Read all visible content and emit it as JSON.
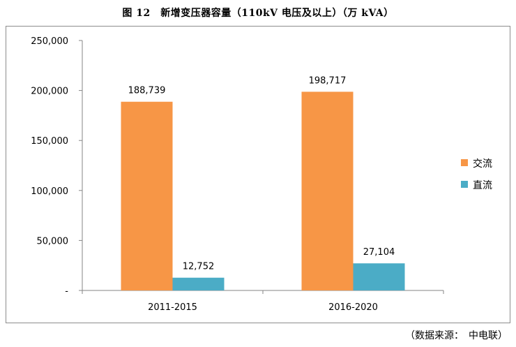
{
  "source_label": "（数据来源：　中电联）",
  "colors": {
    "ac": "#F79646",
    "dc": "#4BACC6",
    "axis": "#868686",
    "frame": "#8c8c8c"
  },
  "chart_data": {
    "type": "bar",
    "title": "图 12　新增变压器容量（110kV 电压及以上）（万 kVA）",
    "categories": [
      "2011-2015",
      "2016-2020"
    ],
    "series": [
      {
        "name": "交流",
        "values": [
          188739,
          198717
        ],
        "labels": [
          "188,739",
          "198,717"
        ]
      },
      {
        "name": "直流",
        "values": [
          12752,
          27104
        ],
        "labels": [
          "12,752",
          "27,104"
        ]
      }
    ],
    "ylim": [
      0,
      250000
    ],
    "yticks": [
      0,
      50000,
      100000,
      150000,
      200000,
      250000
    ],
    "ytick_labels": [
      "-",
      "50,000",
      "100,000",
      "150,000",
      "200,000",
      "250,000"
    ],
    "xlabel": "",
    "ylabel": "",
    "grid": false,
    "legend_position": "right"
  }
}
